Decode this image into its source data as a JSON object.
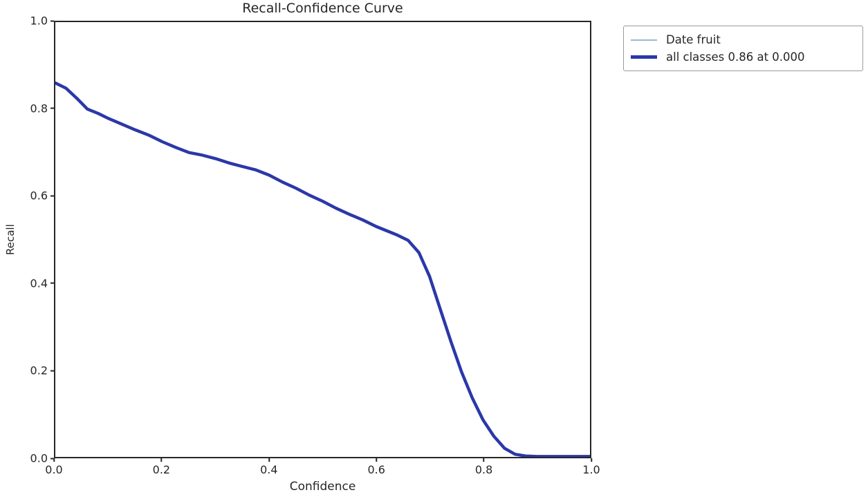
{
  "chart_data": {
    "type": "line",
    "title": "Recall-Confidence Curve",
    "xlabel": "Confidence",
    "ylabel": "Recall",
    "xlim": [
      0,
      1
    ],
    "ylim": [
      0,
      1
    ],
    "grid": false,
    "legend_position": "outside-top-right",
    "xticks": [
      0.0,
      0.2,
      0.4,
      0.6,
      0.8,
      1.0
    ],
    "yticks": [
      0.0,
      0.2,
      0.4,
      0.6,
      0.8,
      1.0
    ],
    "xtick_labels": [
      "0.0",
      "0.2",
      "0.4",
      "0.6",
      "0.8",
      "1.0"
    ],
    "ytick_labels": [
      "0.0",
      "0.2",
      "0.4",
      "0.6",
      "0.8",
      "1.0"
    ],
    "x": [
      0.0,
      0.02,
      0.04,
      0.06,
      0.08,
      0.1,
      0.125,
      0.15,
      0.175,
      0.2,
      0.225,
      0.25,
      0.275,
      0.3,
      0.325,
      0.35,
      0.375,
      0.4,
      0.425,
      0.45,
      0.475,
      0.5,
      0.525,
      0.55,
      0.575,
      0.6,
      0.62,
      0.64,
      0.66,
      0.68,
      0.7,
      0.72,
      0.74,
      0.76,
      0.78,
      0.8,
      0.82,
      0.84,
      0.86,
      0.88,
      0.9,
      0.95,
      1.0
    ],
    "series": [
      {
        "name": "Date fruit",
        "color": "#9db9cc",
        "linewidth": 1.5,
        "values": [
          0.86,
          0.848,
          0.825,
          0.8,
          0.79,
          0.778,
          0.765,
          0.752,
          0.74,
          0.725,
          0.712,
          0.7,
          0.694,
          0.686,
          0.676,
          0.668,
          0.66,
          0.648,
          0.632,
          0.618,
          0.602,
          0.588,
          0.572,
          0.558,
          0.545,
          0.53,
          0.52,
          0.51,
          0.498,
          0.47,
          0.415,
          0.34,
          0.265,
          0.195,
          0.135,
          0.085,
          0.048,
          0.02,
          0.006,
          0.002,
          0.001,
          0.001,
          0.001
        ]
      },
      {
        "name": "all classes 0.86 at 0.000",
        "color": "#2b38a8",
        "linewidth": 4.5,
        "values": [
          0.86,
          0.848,
          0.825,
          0.8,
          0.79,
          0.778,
          0.765,
          0.752,
          0.74,
          0.725,
          0.712,
          0.7,
          0.694,
          0.686,
          0.676,
          0.668,
          0.66,
          0.648,
          0.632,
          0.618,
          0.602,
          0.588,
          0.572,
          0.558,
          0.545,
          0.53,
          0.52,
          0.51,
          0.498,
          0.47,
          0.415,
          0.34,
          0.265,
          0.195,
          0.135,
          0.085,
          0.048,
          0.02,
          0.006,
          0.002,
          0.001,
          0.001,
          0.001
        ]
      }
    ]
  }
}
